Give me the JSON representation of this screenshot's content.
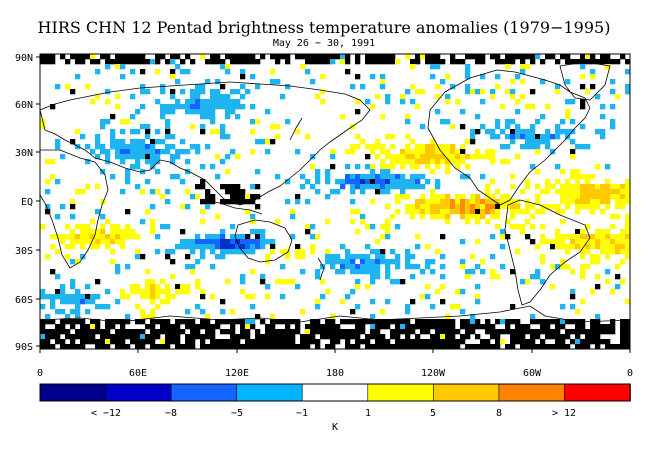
{
  "title": "HIRS CHN 12 Pentad brightness temperature anomalies (1979−1995)",
  "subtitle": "May 26 − 30, 1991",
  "map": {
    "lat_labels": [
      "90N",
      "60N",
      "30N",
      "EQ",
      "30S",
      "60S",
      "90S"
    ],
    "lon_labels": [
      "0",
      "60E",
      "120E",
      "180",
      "120W",
      "60W",
      "0"
    ],
    "colors": {
      "missing": "#000000",
      "neutral": "#ffffff",
      "cool_weak": "#1eb4f0",
      "cool_mid": "#1464ff",
      "cool_strong": "#0032c8",
      "warm_weak": "#ffff00",
      "warm_mid": "#ffc800",
      "warm_strong": "#ff8c00"
    }
  },
  "colorbar": {
    "colors": [
      "#00008c",
      "#0000c8",
      "#1464ff",
      "#00b4ff",
      "#ffffff",
      "#ffff00",
      "#ffc800",
      "#ff8200",
      "#ff0000"
    ],
    "labels": [
      "< −12",
      "−8",
      "−5",
      "−1",
      "1",
      "5",
      "8",
      "> 12"
    ],
    "unit": "K"
  }
}
